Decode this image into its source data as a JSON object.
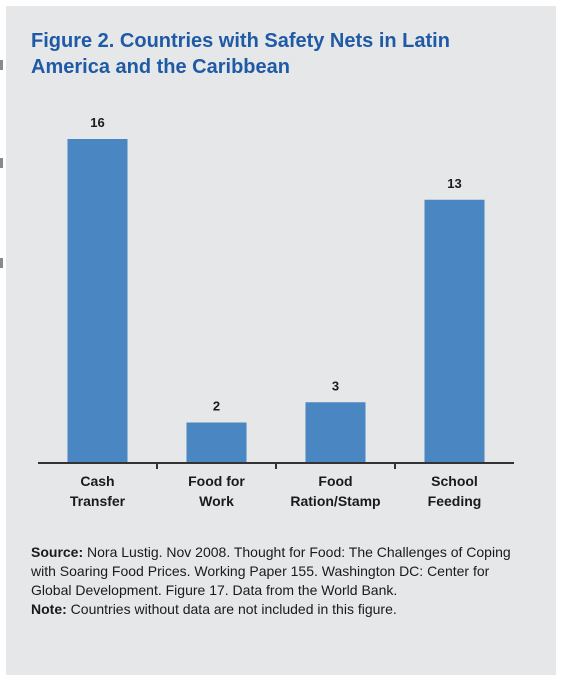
{
  "figure": {
    "title": "Figure 2. Countries with Safety Nets in Latin America and the Caribbean"
  },
  "chart_data": {
    "type": "bar",
    "categories": [
      [
        "Cash",
        "Transfer"
      ],
      [
        "Food for",
        "Work"
      ],
      [
        "Food",
        "Ration/Stamp"
      ],
      [
        "School",
        "Feeding"
      ]
    ],
    "values": [
      16,
      2,
      3,
      13
    ],
    "data_labels": [
      "16",
      "2",
      "3",
      "13"
    ],
    "ylim": [
      0,
      16
    ],
    "grid": false,
    "legend": "none",
    "bar_color": "#4a86c1",
    "axis_color": "#333333"
  },
  "footnote": {
    "source_label": "Source:",
    "source_text": " Nora Lustig. Nov 2008. Thought for Food: The Challenges of Coping with Soaring Food Prices. Working Paper 155. Washington DC: Center for Global Development. Figure 17. Data from the World Bank.",
    "note_label": "Note:",
    "note_text": " Countries without data are not included in this figure."
  }
}
